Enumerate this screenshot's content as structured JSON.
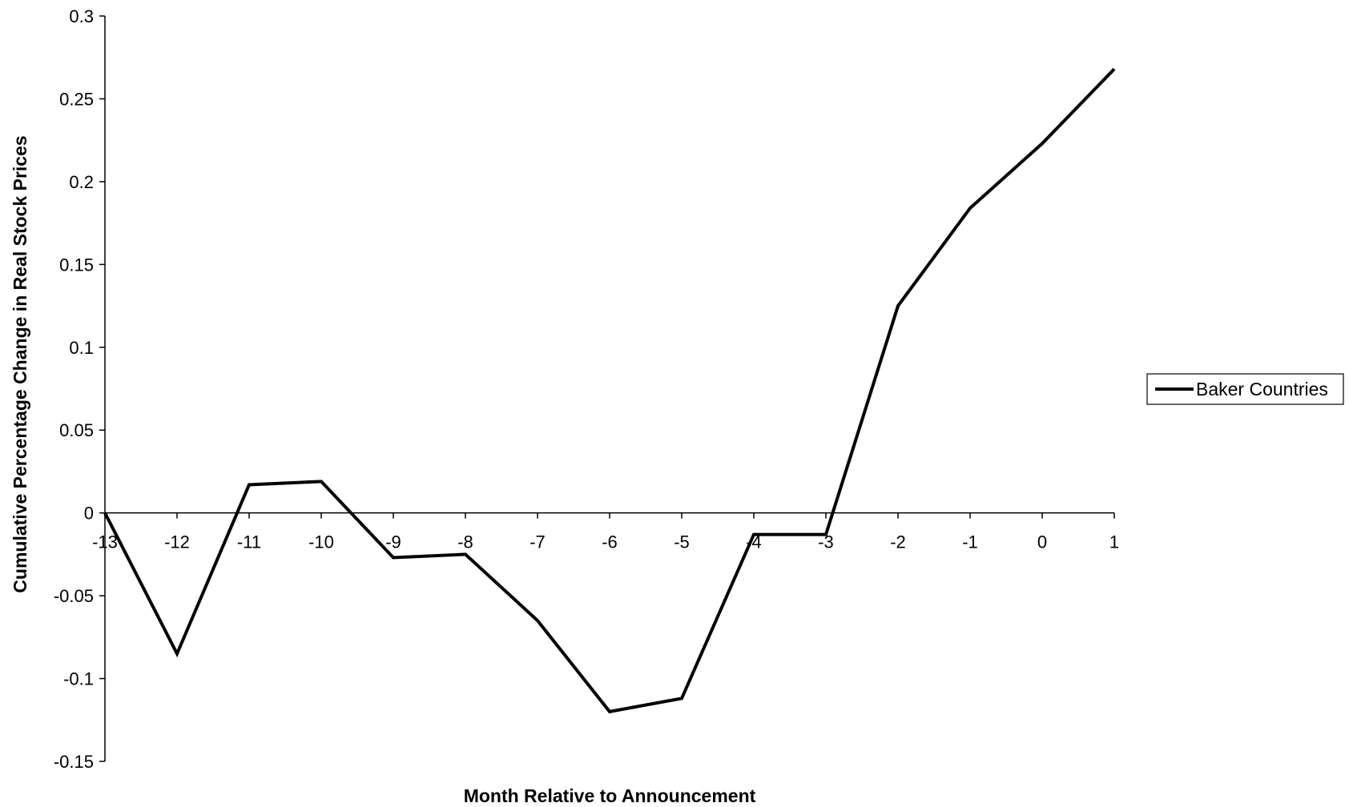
{
  "chart_data": {
    "type": "line",
    "title": "",
    "xlabel": "Month Relative to Announcement",
    "ylabel": "Cumulative Percentage Change in Real Stock Prices",
    "x": [
      -13,
      -12,
      -11,
      -10,
      -9,
      -8,
      -7,
      -6,
      -5,
      -4,
      -3,
      -2,
      -1,
      0,
      1
    ],
    "series": [
      {
        "name": "Baker Countries",
        "color": "#000000",
        "values": [
          0.0,
          -0.085,
          0.017,
          0.019,
          -0.027,
          -0.025,
          -0.065,
          -0.12,
          -0.112,
          -0.013,
          -0.013,
          0.125,
          0.184,
          0.223,
          0.268
        ]
      }
    ],
    "x_ticks": [
      "-13",
      "-12",
      "-11",
      "-10",
      "-9",
      "-8",
      "-7",
      "-6",
      "-5",
      "-4",
      "-3",
      "-2",
      "-1",
      "0",
      "1"
    ],
    "y_ticks": [
      "0.3",
      "0.25",
      "0.2",
      "0.15",
      "0.1",
      "0.05",
      "0",
      "-0.05",
      "-0.1",
      "-0.15"
    ],
    "ylim": [
      -0.15,
      0.3
    ],
    "xlim": [
      -13,
      1
    ],
    "grid": false,
    "legend_position": "right"
  }
}
